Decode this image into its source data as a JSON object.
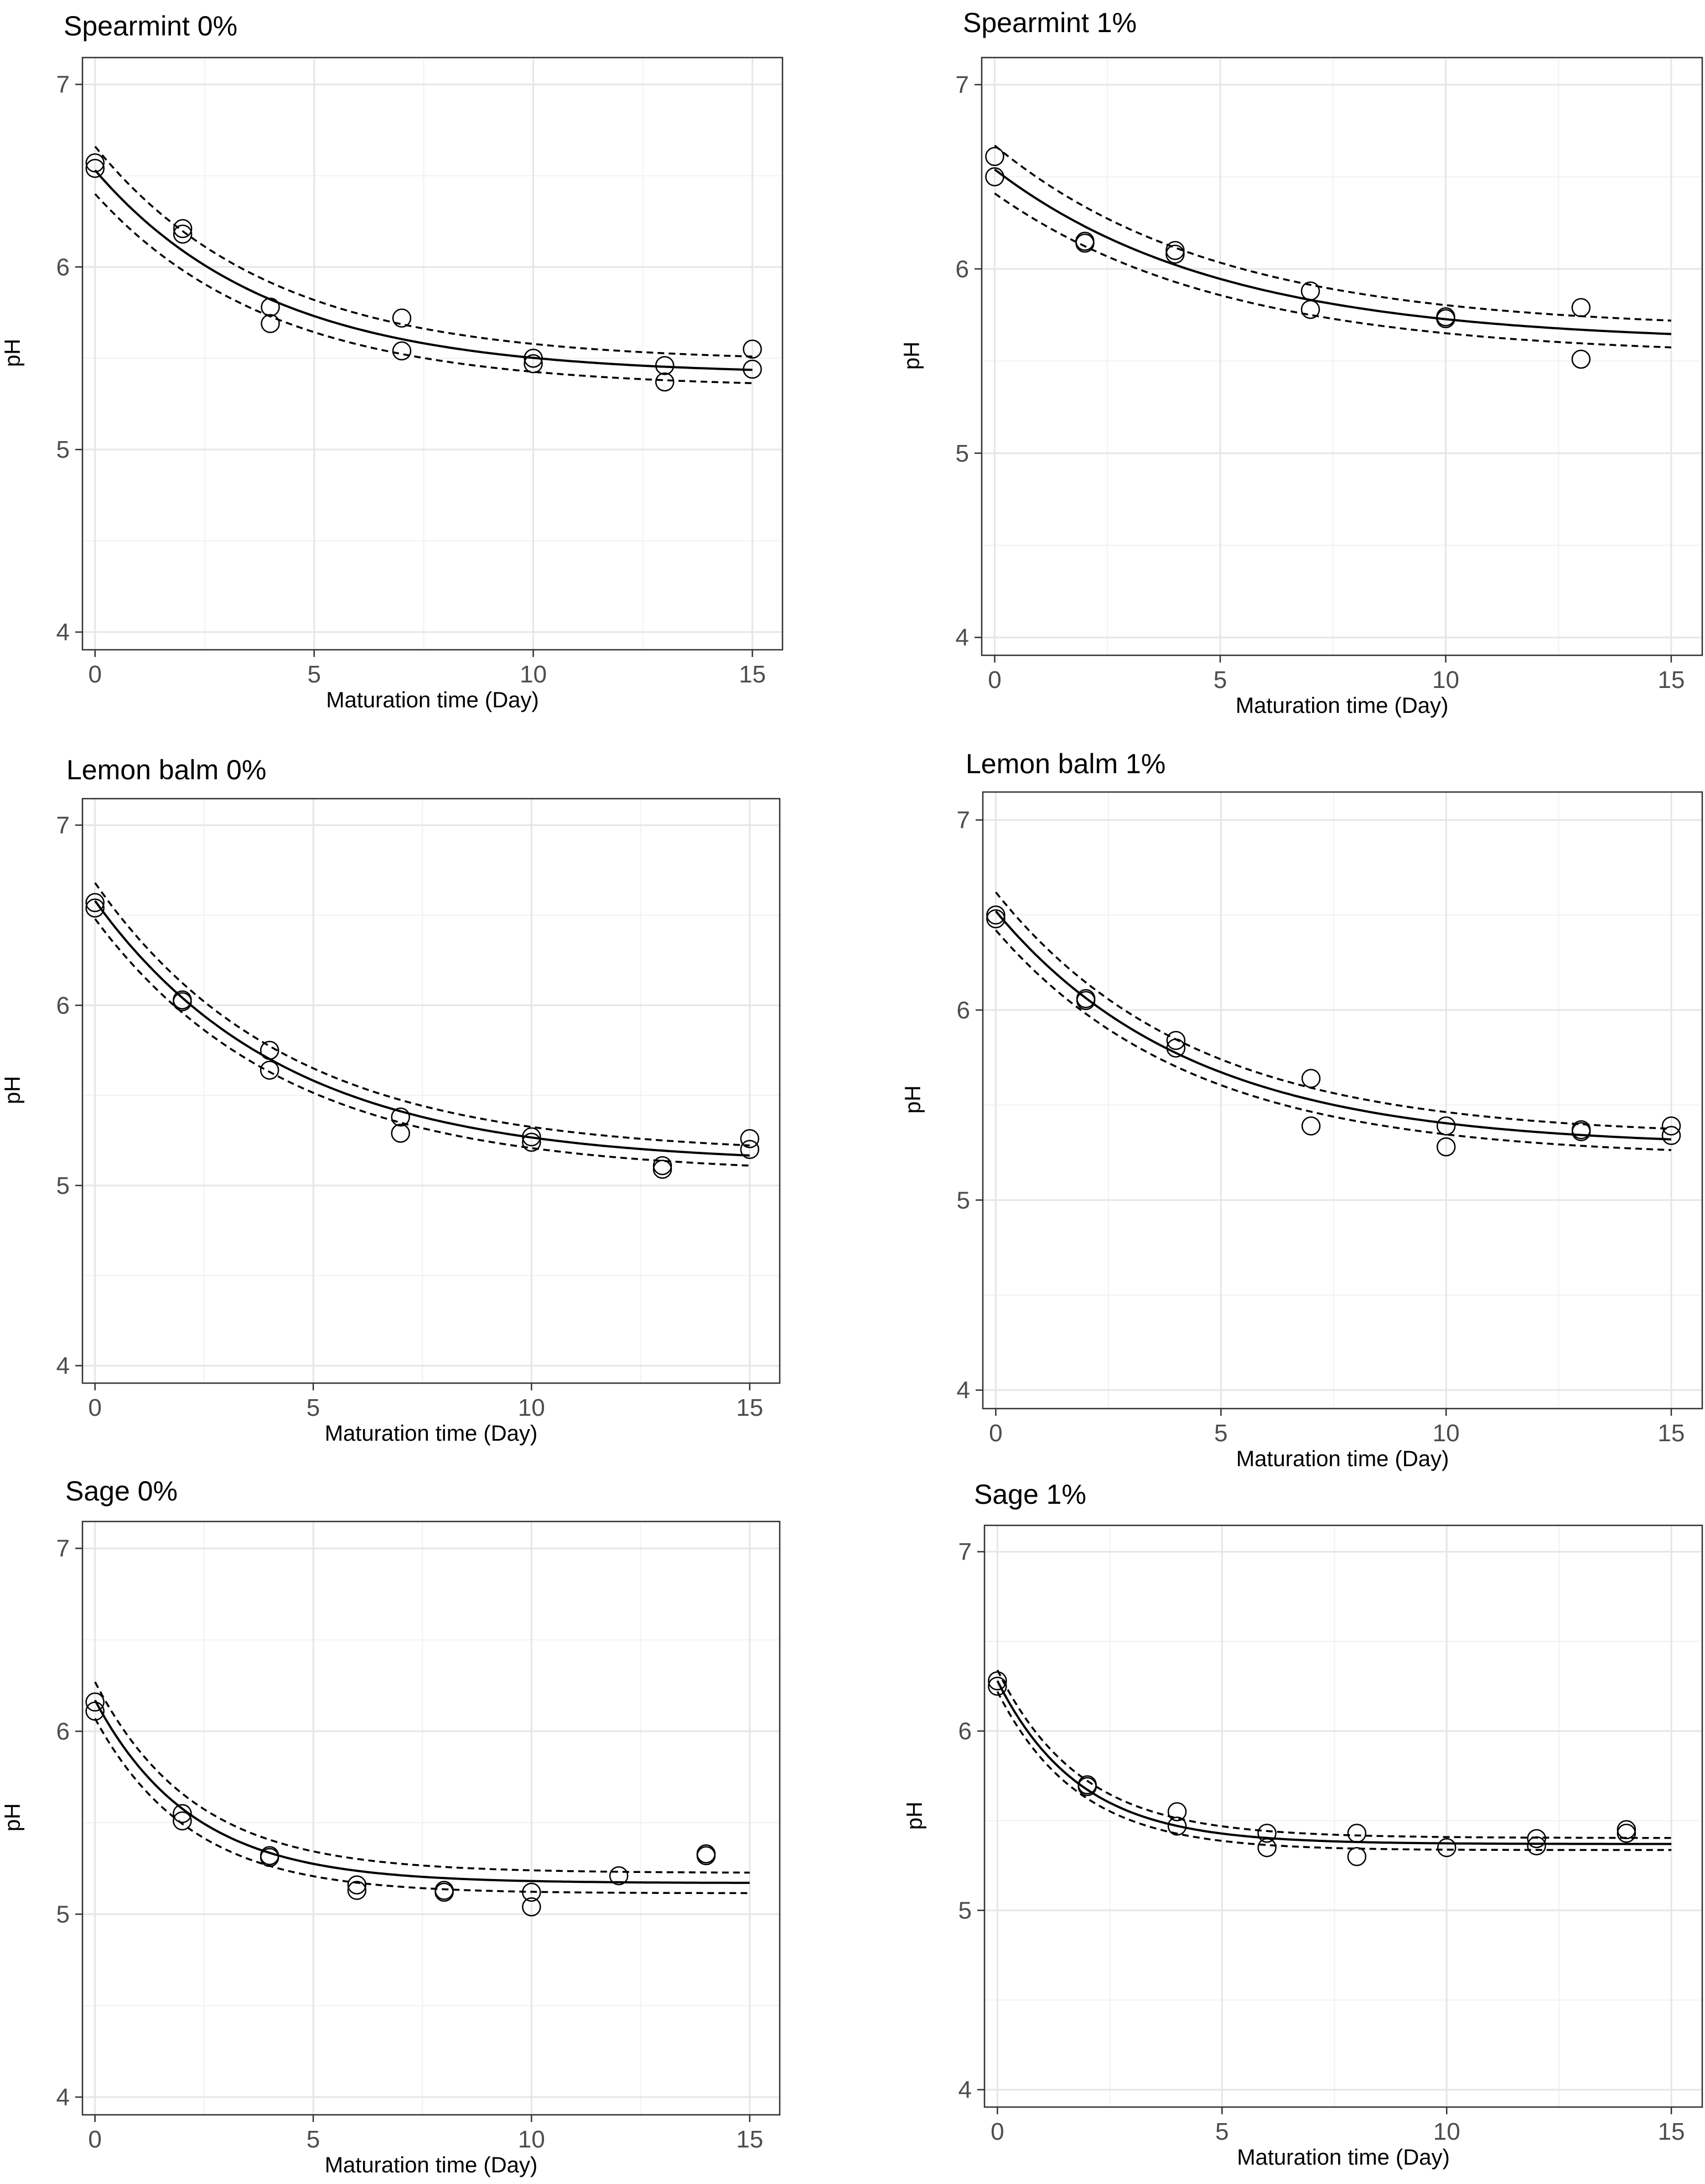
{
  "chart_data": [
    {
      "type": "scatter",
      "title": "Spearmint 0%",
      "xlabel": "Maturation time (Day)",
      "ylabel": "pH",
      "xlim": [
        -0.3,
        15.7
      ],
      "ylim": [
        3.9,
        7.15
      ],
      "x_ticks": [
        0,
        5,
        10,
        15
      ],
      "y_ticks": [
        4,
        5,
        6,
        7
      ],
      "grid": true,
      "points": [
        [
          0,
          6.57
        ],
        [
          0,
          6.54
        ],
        [
          2,
          6.21
        ],
        [
          2,
          6.18
        ],
        [
          4,
          5.78
        ],
        [
          4,
          5.69
        ],
        [
          7,
          5.72
        ],
        [
          7,
          5.54
        ],
        [
          10,
          5.5
        ],
        [
          10,
          5.47
        ],
        [
          13,
          5.46
        ],
        [
          13,
          5.37
        ],
        [
          15,
          5.55
        ],
        [
          15,
          5.44
        ]
      ],
      "fit": {
        "model": "pH = a + b*exp(-k*t)",
        "a": 5.41,
        "b": 1.12,
        "k": 0.25,
        "x_range": [
          0,
          15
        ]
      },
      "ci_band": {
        "upper_offset": 0.13,
        "lower_offset": 0.13
      }
    },
    {
      "type": "scatter",
      "title": "Spearmint 1%",
      "xlabel": "Maturation time (Day)",
      "ylabel": "pH",
      "xlim": [
        -0.3,
        15.7
      ],
      "ylim": [
        3.9,
        7.15
      ],
      "x_ticks": [
        0,
        5,
        10,
        15
      ],
      "y_ticks": [
        4,
        5,
        6,
        7
      ],
      "grid": true,
      "points": [
        [
          0,
          6.61
        ],
        [
          0,
          6.5
        ],
        [
          2,
          6.15
        ],
        [
          2,
          6.14
        ],
        [
          4,
          6.1
        ],
        [
          4,
          6.08
        ],
        [
          7,
          5.88
        ],
        [
          7,
          5.78
        ],
        [
          10,
          5.74
        ],
        [
          10,
          5.73
        ],
        [
          13,
          5.79
        ],
        [
          13,
          5.51
        ]
      ],
      "fit": {
        "model": "pH = a + b*exp(-k*t)",
        "a": 5.6,
        "b": 0.94,
        "k": 0.2,
        "x_range": [
          0,
          15
        ]
      },
      "ci_band": {
        "upper_offset": 0.13,
        "lower_offset": 0.13
      }
    },
    {
      "type": "scatter",
      "title": "Lemon balm 0%",
      "xlabel": "Maturation time (Day)",
      "ylabel": "pH",
      "xlim": [
        -0.3,
        15.7
      ],
      "ylim": [
        3.9,
        7.15
      ],
      "x_ticks": [
        0,
        5,
        10,
        15
      ],
      "y_ticks": [
        4,
        5,
        6,
        7
      ],
      "grid": true,
      "points": [
        [
          0,
          6.57
        ],
        [
          0,
          6.54
        ],
        [
          2,
          6.03
        ],
        [
          2,
          6.02
        ],
        [
          4,
          5.75
        ],
        [
          4,
          5.64
        ],
        [
          7,
          5.38
        ],
        [
          7,
          5.29
        ],
        [
          10,
          5.27
        ],
        [
          10,
          5.24
        ],
        [
          13,
          5.11
        ],
        [
          13,
          5.09
        ],
        [
          15,
          5.26
        ],
        [
          15,
          5.2
        ]
      ],
      "fit": {
        "model": "pH = a + b*exp(-k*t)",
        "a": 5.12,
        "b": 1.46,
        "k": 0.23,
        "x_range": [
          0,
          15
        ]
      },
      "ci_band": {
        "upper_offset": 0.1,
        "lower_offset": 0.1
      }
    },
    {
      "type": "scatter",
      "title": "Lemon balm 1%",
      "xlabel": "Maturation time (Day)",
      "ylabel": "pH",
      "xlim": [
        -0.3,
        15.7
      ],
      "ylim": [
        3.9,
        7.15
      ],
      "x_ticks": [
        0,
        5,
        10,
        15
      ],
      "y_ticks": [
        4,
        5,
        6,
        7
      ],
      "grid": true,
      "points": [
        [
          0,
          6.5
        ],
        [
          0,
          6.48
        ],
        [
          2,
          6.06
        ],
        [
          2,
          6.05
        ],
        [
          4,
          5.84
        ],
        [
          4,
          5.8
        ],
        [
          7,
          5.64
        ],
        [
          7,
          5.39
        ],
        [
          10,
          5.39
        ],
        [
          10,
          5.28
        ],
        [
          13,
          5.37
        ],
        [
          13,
          5.36
        ],
        [
          15,
          5.39
        ],
        [
          15,
          5.34
        ]
      ],
      "fit": {
        "model": "pH = a + b*exp(-k*t)",
        "a": 5.28,
        "b": 1.24,
        "k": 0.23,
        "x_range": [
          0,
          15
        ]
      },
      "ci_band": {
        "upper_offset": 0.1,
        "lower_offset": 0.1
      }
    },
    {
      "type": "scatter",
      "title": "Sage 0%",
      "xlabel": "Maturation time (Day)",
      "ylabel": "pH",
      "xlim": [
        -0.3,
        15.7
      ],
      "ylim": [
        3.9,
        7.15
      ],
      "x_ticks": [
        0,
        5,
        10,
        15
      ],
      "y_ticks": [
        4,
        5,
        6,
        7
      ],
      "grid": true,
      "points": [
        [
          0,
          6.16
        ],
        [
          0,
          6.11
        ],
        [
          2,
          5.55
        ],
        [
          2,
          5.51
        ],
        [
          4,
          5.32
        ],
        [
          4,
          5.31
        ],
        [
          6,
          5.16
        ],
        [
          6,
          5.13
        ],
        [
          8,
          5.13
        ],
        [
          8,
          5.12
        ],
        [
          10,
          5.12
        ],
        [
          10,
          5.04
        ],
        [
          12,
          5.21
        ],
        [
          14,
          5.33
        ],
        [
          14,
          5.32
        ]
      ],
      "fit": {
        "model": "pH = a + b*exp(-k*t)",
        "a": 5.17,
        "b": 1.0,
        "k": 0.45,
        "x_range": [
          0,
          15
        ]
      },
      "ci_band": {
        "upper_offset": 0.1,
        "lower_offset": 0.1
      }
    },
    {
      "type": "scatter",
      "title": "Sage 1%",
      "xlabel": "Maturation time (Day)",
      "ylabel": "pH",
      "xlim": [
        -0.3,
        15.7
      ],
      "ylim": [
        3.9,
        7.15
      ],
      "x_ticks": [
        0,
        5,
        10,
        15
      ],
      "y_ticks": [
        4,
        5,
        6,
        7
      ],
      "grid": true,
      "points": [
        [
          0,
          6.28
        ],
        [
          0,
          6.25
        ],
        [
          2,
          5.7
        ],
        [
          2,
          5.69
        ],
        [
          4,
          5.55
        ],
        [
          4,
          5.47
        ],
        [
          6,
          5.43
        ],
        [
          6,
          5.35
        ],
        [
          8,
          5.43
        ],
        [
          8,
          5.3
        ],
        [
          10,
          5.35
        ],
        [
          12,
          5.4
        ],
        [
          12,
          5.36
        ],
        [
          14,
          5.45
        ],
        [
          14,
          5.43
        ]
      ],
      "fit": {
        "model": "pH = a + b*exp(-k*t)",
        "a": 5.37,
        "b": 0.91,
        "k": 0.55,
        "x_range": [
          0,
          15
        ]
      },
      "ci_band": {
        "upper_offset": 0.06,
        "lower_offset": 0.06
      }
    }
  ]
}
